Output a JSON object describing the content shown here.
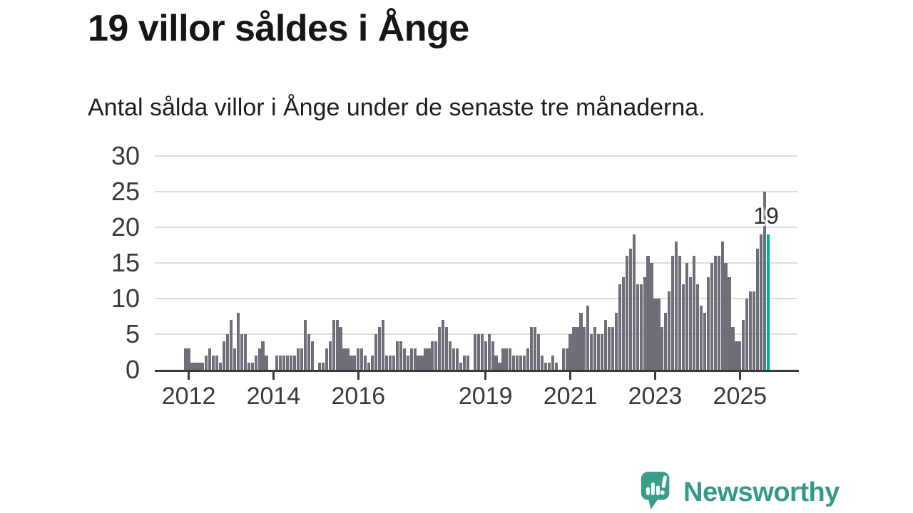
{
  "title": "19 villor såldes i Ånge",
  "subtitle": "Antal sålda villor i Ånge under de senaste tre månaderna.",
  "branding": {
    "logo_text": "Newsworthy"
  },
  "chart_data": {
    "type": "bar",
    "title": "19 villor såldes i Ånge",
    "subtitle": "Antal sålda villor i Ånge under de senaste tre månaderna.",
    "frequency": "monthly",
    "x_start": "2011-12",
    "x_end": "2025-09",
    "ylim": [
      0,
      30
    ],
    "grid": true,
    "y_ticks": [
      0,
      5,
      10,
      15,
      20,
      25,
      30
    ],
    "x_ticks": [
      {
        "label": "2012",
        "index": 1
      },
      {
        "label": "2014",
        "index": 25
      },
      {
        "label": "2016",
        "index": 49
      },
      {
        "label": "2019",
        "index": 85
      },
      {
        "label": "2021",
        "index": 109
      },
      {
        "label": "2023",
        "index": 133
      },
      {
        "label": "2025",
        "index": 157
      }
    ],
    "values": [
      3,
      3,
      1,
      1,
      1,
      1,
      2,
      3,
      2,
      2,
      1,
      4,
      5,
      7,
      3,
      8,
      5,
      5,
      1,
      1,
      2,
      3,
      4,
      2,
      0,
      0,
      2,
      2,
      2,
      2,
      2,
      2,
      3,
      3,
      7,
      5,
      4,
      0,
      1,
      1,
      3,
      4,
      7,
      7,
      6,
      3,
      3,
      2,
      2,
      3,
      3,
      2,
      1,
      2,
      5,
      6,
      7,
      2,
      2,
      2,
      4,
      4,
      3,
      2,
      3,
      3,
      2,
      2,
      3,
      3,
      4,
      4,
      6,
      7,
      6,
      4,
      3,
      3,
      1,
      2,
      2,
      0,
      5,
      5,
      5,
      4,
      5,
      4,
      2,
      1,
      3,
      3,
      3,
      2,
      2,
      2,
      2,
      3,
      6,
      6,
      5,
      2,
      1,
      1,
      2,
      1,
      0,
      3,
      3,
      5,
      6,
      6,
      8,
      6,
      9,
      5,
      6,
      5,
      5,
      7,
      6,
      6,
      8,
      12,
      13,
      16,
      17,
      19,
      12,
      12,
      13,
      16,
      15,
      10,
      10,
      6,
      8,
      11,
      16,
      18,
      16,
      12,
      15,
      13,
      16,
      12,
      9,
      8,
      13,
      15,
      16,
      16,
      18,
      15,
      13,
      6,
      4,
      4,
      7,
      10,
      11,
      11,
      17,
      19,
      25,
      19
    ],
    "annotation": {
      "text": "19",
      "bar_index": 165
    },
    "colors": {
      "bar": "#6f6f79",
      "highlight": "#00aba4",
      "axis_text": "#3a3a3a",
      "gridline": "#dcdcdc",
      "axis_line": "#3a3a3a",
      "logo_teal": "#3a9e8b",
      "logo_text_teal": "#35998a"
    }
  }
}
